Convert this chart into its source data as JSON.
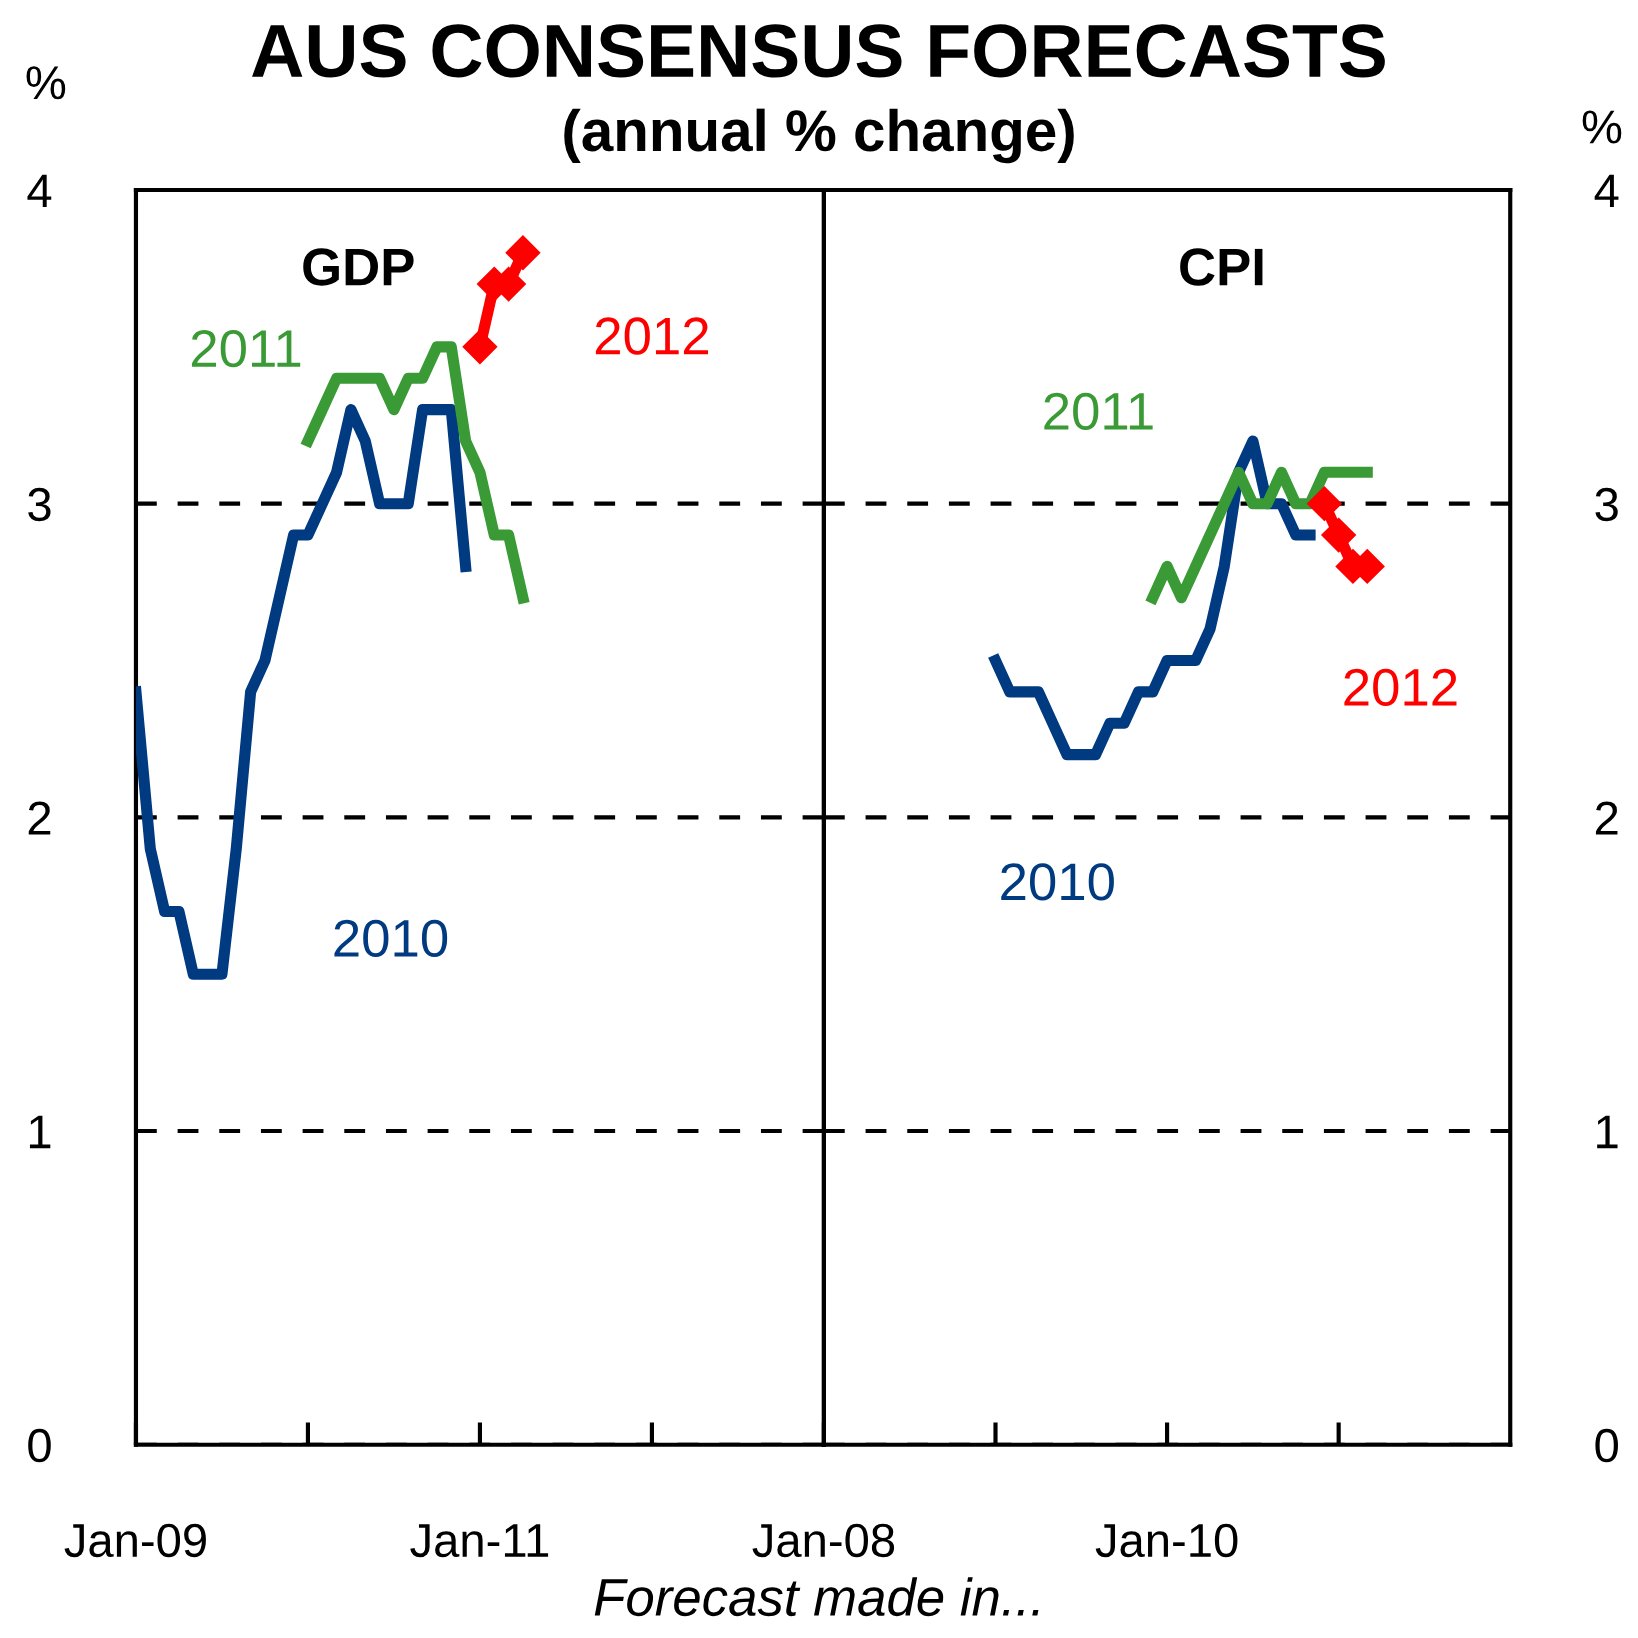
{
  "chart_data": [
    {
      "type": "line",
      "title": "AUS CONSENSUS FORECASTS",
      "subtitle": "(annual % change)",
      "xlabel": "Forecast made in...",
      "ylabel": "%",
      "annotations": [
        "GDP"
      ],
      "xlim": [
        "2009-01",
        "2013-01"
      ],
      "xticks": [
        {
          "value": "2009-01",
          "label": "Jan-09"
        },
        {
          "value": "2010-01",
          "label": null
        },
        {
          "value": "2011-01",
          "label": "Jan-11"
        },
        {
          "value": "2012-01",
          "label": null
        }
      ],
      "ylim": [
        0,
        4
      ],
      "yticks": [
        0,
        1,
        2,
        3,
        4
      ],
      "grid": "y",
      "series": [
        {
          "name": "2010",
          "color": "#003a80",
          "x": [
            "2009-01",
            "2009-02",
            "2009-03",
            "2009-04",
            "2009-05",
            "2009-06",
            "2009-07",
            "2009-08",
            "2009-09",
            "2009-10",
            "2009-11",
            "2009-12",
            "2010-01",
            "2010-02",
            "2010-03",
            "2010-04",
            "2010-05",
            "2010-06",
            "2010-07",
            "2010-08",
            "2010-09",
            "2010-10",
            "2010-11",
            "2010-12"
          ],
          "values": [
            2.4,
            1.9,
            1.7,
            1.7,
            1.5,
            1.5,
            1.5,
            1.9,
            2.4,
            2.5,
            2.7,
            2.9,
            2.9,
            3.0,
            3.1,
            3.3,
            3.2,
            3.0,
            3.0,
            3.0,
            3.3,
            3.3,
            3.3,
            2.8
          ]
        },
        {
          "name": "2011",
          "color": "#3a9a35",
          "x": [
            "2010-01",
            "2010-02",
            "2010-03",
            "2010-04",
            "2010-05",
            "2010-06",
            "2010-07",
            "2010-08",
            "2010-09",
            "2010-10",
            "2010-11",
            "2010-12",
            "2011-01",
            "2011-02",
            "2011-03",
            "2011-04"
          ],
          "values": [
            3.2,
            3.3,
            3.4,
            3.4,
            3.4,
            3.4,
            3.3,
            3.4,
            3.4,
            3.5,
            3.5,
            3.2,
            3.1,
            2.9,
            2.9,
            2.7
          ]
        },
        {
          "name": "2012",
          "color": "#ff0000",
          "marker": "diamond",
          "x": [
            "2011-01",
            "2011-02",
            "2011-03",
            "2011-04"
          ],
          "values": [
            3.5,
            3.7,
            3.7,
            3.8
          ]
        }
      ]
    },
    {
      "type": "line",
      "y2label": "%",
      "annotations": [
        "CPI"
      ],
      "xlim": [
        "2008-01",
        "2012-01"
      ],
      "xticks": [
        {
          "value": "2008-01",
          "label": "Jan-08"
        },
        {
          "value": "2009-01",
          "label": null
        },
        {
          "value": "2010-01",
          "label": "Jan-10"
        },
        {
          "value": "2011-01",
          "label": null
        }
      ],
      "y2lim": [
        0,
        4
      ],
      "y2ticks": [
        0,
        1,
        2,
        3,
        4
      ],
      "grid": "y",
      "series": [
        {
          "name": "2010",
          "color": "#003a80",
          "axis": "y2",
          "x": [
            "2009-01",
            "2009-02",
            "2009-03",
            "2009-04",
            "2009-05",
            "2009-06",
            "2009-07",
            "2009-08",
            "2009-09",
            "2009-10",
            "2009-11",
            "2009-12",
            "2010-01",
            "2010-02",
            "2010-03",
            "2010-04",
            "2010-05",
            "2010-06",
            "2010-07",
            "2010-08",
            "2010-09",
            "2010-10",
            "2010-11"
          ],
          "values": [
            2.5,
            2.4,
            2.4,
            2.4,
            2.3,
            2.2,
            2.2,
            2.2,
            2.3,
            2.3,
            2.4,
            2.4,
            2.5,
            2.5,
            2.5,
            2.6,
            2.8,
            3.1,
            3.2,
            3.0,
            3.0,
            2.9,
            2.9
          ]
        },
        {
          "name": "2011",
          "color": "#3a9a35",
          "axis": "y2",
          "x": [
            "2009-12",
            "2010-01",
            "2010-02",
            "2010-03",
            "2010-04",
            "2010-05",
            "2010-06",
            "2010-07",
            "2010-08",
            "2010-09",
            "2010-10",
            "2010-11",
            "2010-12",
            "2011-01",
            "2011-02",
            "2011-03"
          ],
          "values": [
            2.7,
            2.8,
            2.7,
            2.8,
            2.9,
            3.0,
            3.1,
            3.0,
            3.0,
            3.1,
            3.0,
            3.0,
            3.1,
            3.1,
            3.1,
            3.1
          ]
        },
        {
          "name": "2012",
          "color": "#ff0000",
          "axis": "y2",
          "marker": "diamond",
          "x": [
            "2010-12",
            "2011-01",
            "2011-02",
            "2011-03"
          ],
          "values": [
            3.0,
            2.9,
            2.8,
            2.8
          ]
        }
      ]
    }
  ]
}
